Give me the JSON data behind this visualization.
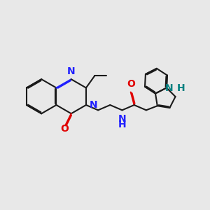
{
  "bg_color": "#e8e8e8",
  "bond_color": "#1a1a1a",
  "N_color": "#2020ff",
  "O_color": "#e00000",
  "NH_color": "#008080",
  "lw": 1.5,
  "dbo": 0.055,
  "fs": 10,
  "fig_w": 3.0,
  "fig_h": 3.0,
  "dpi": 100,
  "xlim": [
    0,
    12
  ],
  "ylim": [
    0,
    12
  ]
}
